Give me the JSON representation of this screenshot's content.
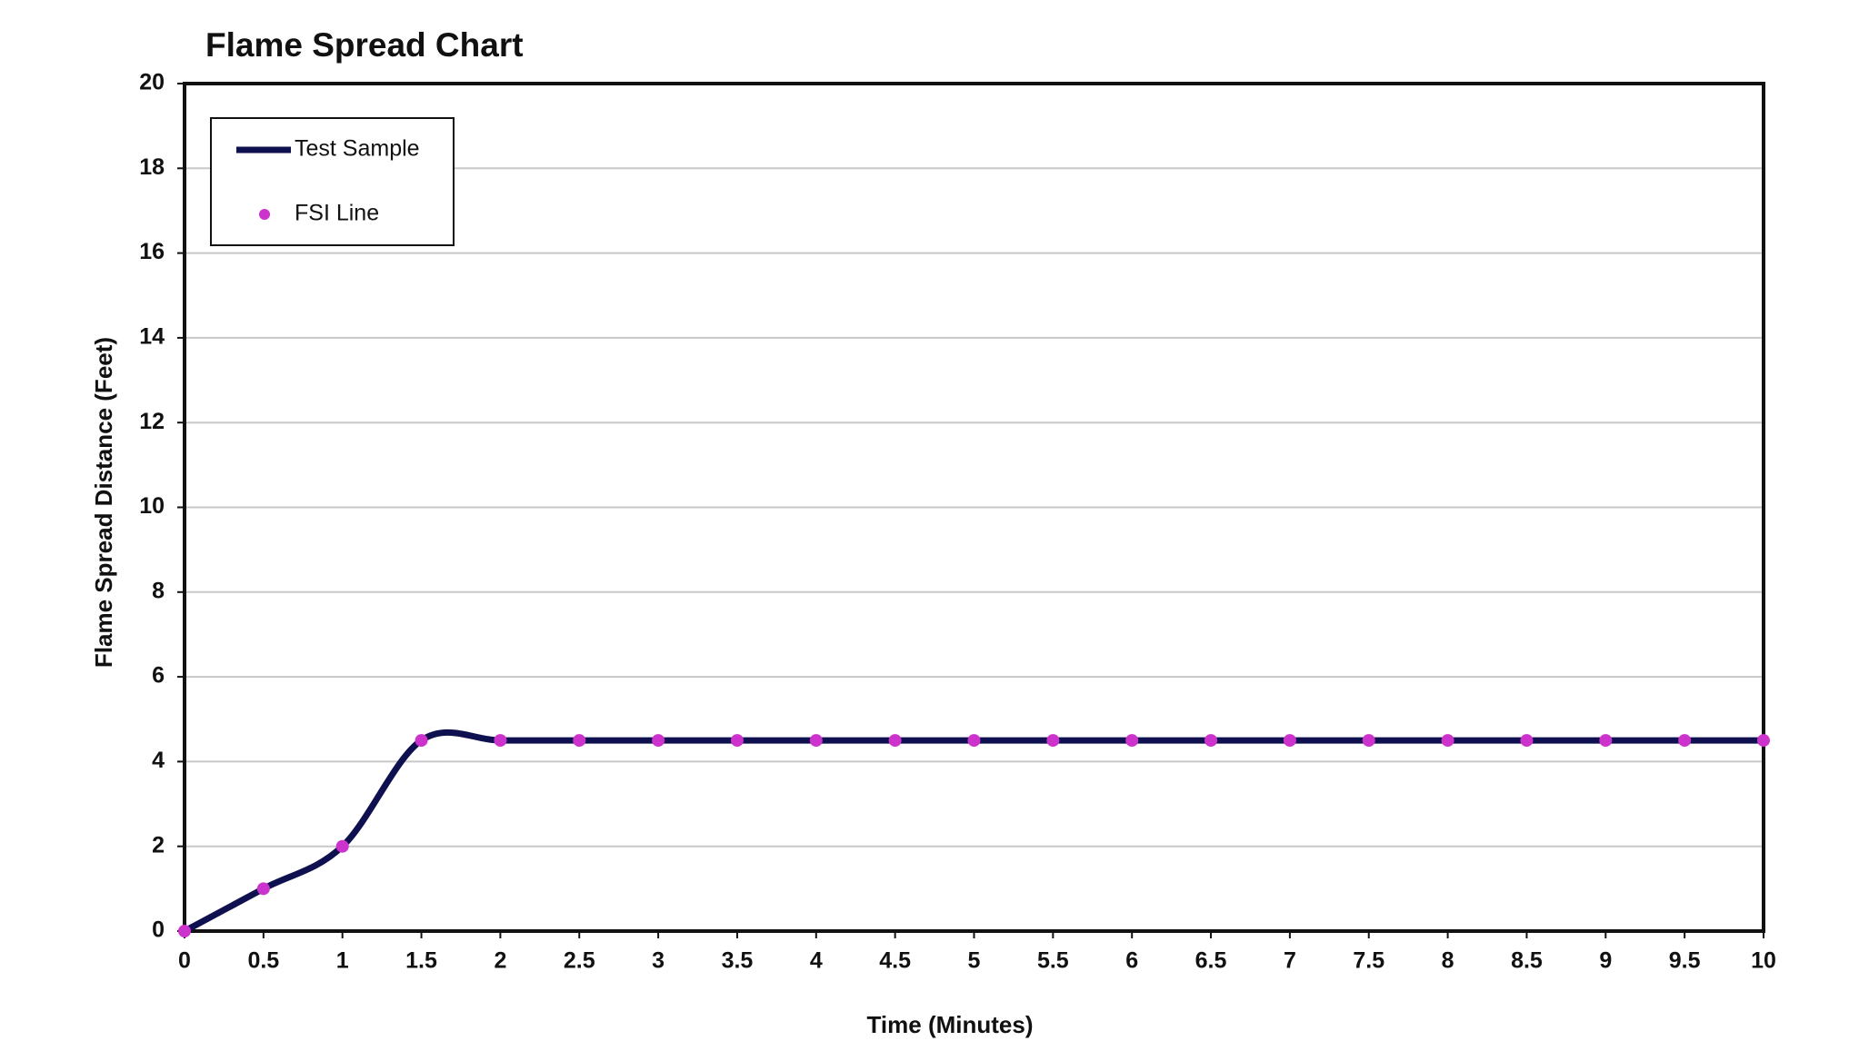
{
  "chart_data": {
    "type": "line",
    "title": "Flame Spread Chart",
    "x_label": "Time (Minutes)",
    "y_label": "Flame Spread Distance (Feet)",
    "x": [
      0,
      0.5,
      1,
      1.5,
      2,
      2.5,
      3,
      3.5,
      4,
      4.5,
      5,
      5.5,
      6,
      6.5,
      7,
      7.5,
      8,
      8.5,
      9,
      9.5,
      10
    ],
    "series": [
      {
        "name": "Test Sample",
        "color": "#0f1050",
        "style": "smooth-line",
        "values": [
          0,
          1,
          2,
          4.5,
          4.5,
          4.5,
          4.5,
          4.5,
          4.5,
          4.5,
          4.5,
          4.5,
          4.5,
          4.5,
          4.5,
          4.5,
          4.5,
          4.5,
          4.5,
          4.5,
          4.5
        ]
      },
      {
        "name": "FSI Line",
        "color": "#cc33cc",
        "style": "markers",
        "values": [
          0,
          1,
          2,
          4.5,
          4.5,
          4.5,
          4.5,
          4.5,
          4.5,
          4.5,
          4.5,
          4.5,
          4.5,
          4.5,
          4.5,
          4.5,
          4.5,
          4.5,
          4.5,
          4.5,
          4.5
        ]
      }
    ],
    "xlim": [
      0,
      10
    ],
    "xticks": [
      0,
      0.5,
      1,
      1.5,
      2,
      2.5,
      3,
      3.5,
      4,
      4.5,
      5,
      5.5,
      6,
      6.5,
      7,
      7.5,
      8,
      8.5,
      9,
      9.5,
      10
    ],
    "ylim": [
      0,
      20
    ],
    "yticks": [
      0,
      2,
      4,
      6,
      8,
      10,
      12,
      14,
      16,
      18,
      20
    ],
    "grid": true,
    "legend": "upper-left"
  }
}
